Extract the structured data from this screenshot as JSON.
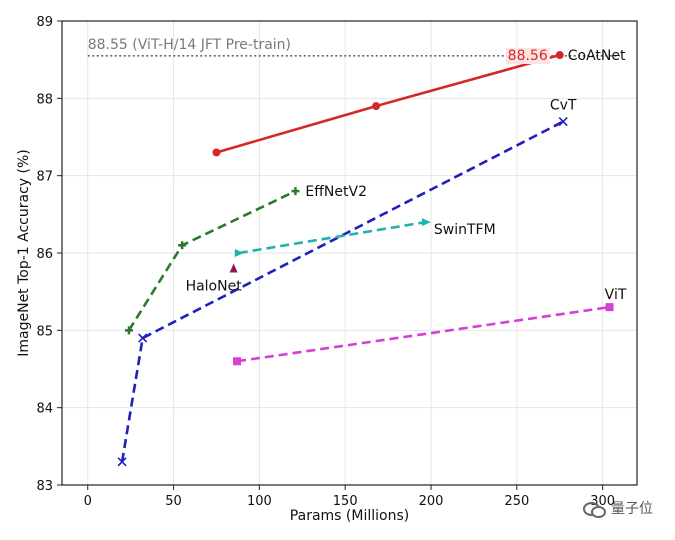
{
  "chart_data": {
    "type": "line",
    "title": "",
    "xlabel": "Params (Millions)",
    "ylabel": "ImageNet Top-1 Accuracy (%)",
    "xlim": [
      -15,
      320
    ],
    "ylim": [
      83,
      89
    ],
    "x_ticks": [
      0,
      50,
      100,
      150,
      200,
      250,
      300
    ],
    "y_ticks": [
      83,
      84,
      85,
      86,
      87,
      88,
      89
    ],
    "grid": true,
    "reference_line": {
      "value": 88.55,
      "label": "88.55 (ViT-H/14 JFT Pre-train)"
    },
    "highlight_label": "88.56",
    "series": [
      {
        "name": "CoAtNet",
        "color": "#d62728",
        "style": "solid",
        "marker": "circle",
        "x": [
          75,
          168,
          275
        ],
        "y": [
          87.3,
          87.9,
          88.56
        ]
      },
      {
        "name": "CvT",
        "color": "#1f1fbf",
        "style": "dashed",
        "marker": "x",
        "x": [
          20,
          32,
          277
        ],
        "y": [
          83.3,
          84.9,
          87.7
        ]
      },
      {
        "name": "EffNetV2",
        "color": "#2a7a2a",
        "style": "dashed",
        "marker": "plus",
        "x": [
          24,
          55,
          121
        ],
        "y": [
          85.0,
          86.1,
          86.8
        ]
      },
      {
        "name": "SwinTFM",
        "color": "#20b2aa",
        "style": "dashed",
        "marker": "tri-right",
        "x": [
          88,
          197
        ],
        "y": [
          86.0,
          86.4
        ]
      },
      {
        "name": "ViT",
        "color": "#d63fd6",
        "style": "dashed",
        "marker": "square",
        "x": [
          87,
          304
        ],
        "y": [
          84.6,
          85.3
        ]
      },
      {
        "name": "HaloNet",
        "color": "#8b1a5a",
        "style": "none",
        "marker": "tri-up",
        "x": [
          85
        ],
        "y": [
          85.8
        ]
      }
    ]
  },
  "watermark": {
    "text": "量子位"
  }
}
